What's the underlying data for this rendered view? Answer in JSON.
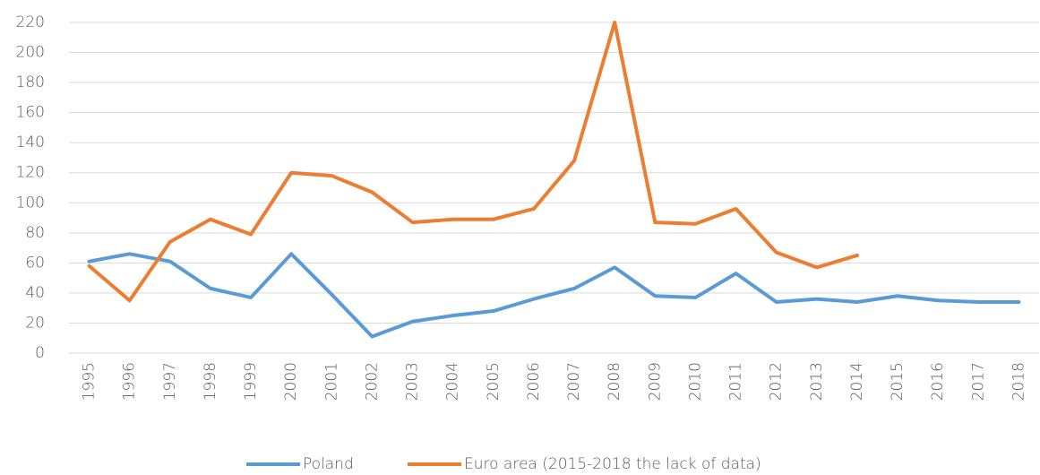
{
  "chart_data": {
    "type": "line",
    "categories": [
      "1995",
      "1996",
      "1997",
      "1998",
      "1999",
      "2000",
      "2001",
      "2002",
      "2003",
      "2004",
      "2005",
      "2006",
      "2007",
      "2008",
      "2009",
      "2010",
      "2011",
      "2012",
      "2013",
      "2014",
      "2015",
      "2016",
      "2017",
      "2018"
    ],
    "series": [
      {
        "name": "Poland",
        "color": "#5b9bd5",
        "values": [
          61,
          66,
          61,
          43,
          37,
          66,
          39,
          11,
          21,
          25,
          28,
          36,
          43,
          57,
          38,
          37,
          53,
          34,
          36,
          34,
          38,
          35,
          34,
          34
        ]
      },
      {
        "name": "Euro area (2015-2018 the lack of data)",
        "color": "#ed7d31",
        "values": [
          58,
          35,
          74,
          89,
          79,
          120,
          118,
          107,
          87,
          89,
          89,
          96,
          128,
          220,
          87,
          86,
          96,
          67,
          57,
          65,
          null,
          null,
          null,
          null
        ]
      }
    ],
    "ylim": [
      0,
      220
    ],
    "yticks": [
      0,
      20,
      40,
      60,
      80,
      100,
      120,
      140,
      160,
      180,
      200,
      220
    ],
    "grid": true,
    "legend": "bottom"
  }
}
